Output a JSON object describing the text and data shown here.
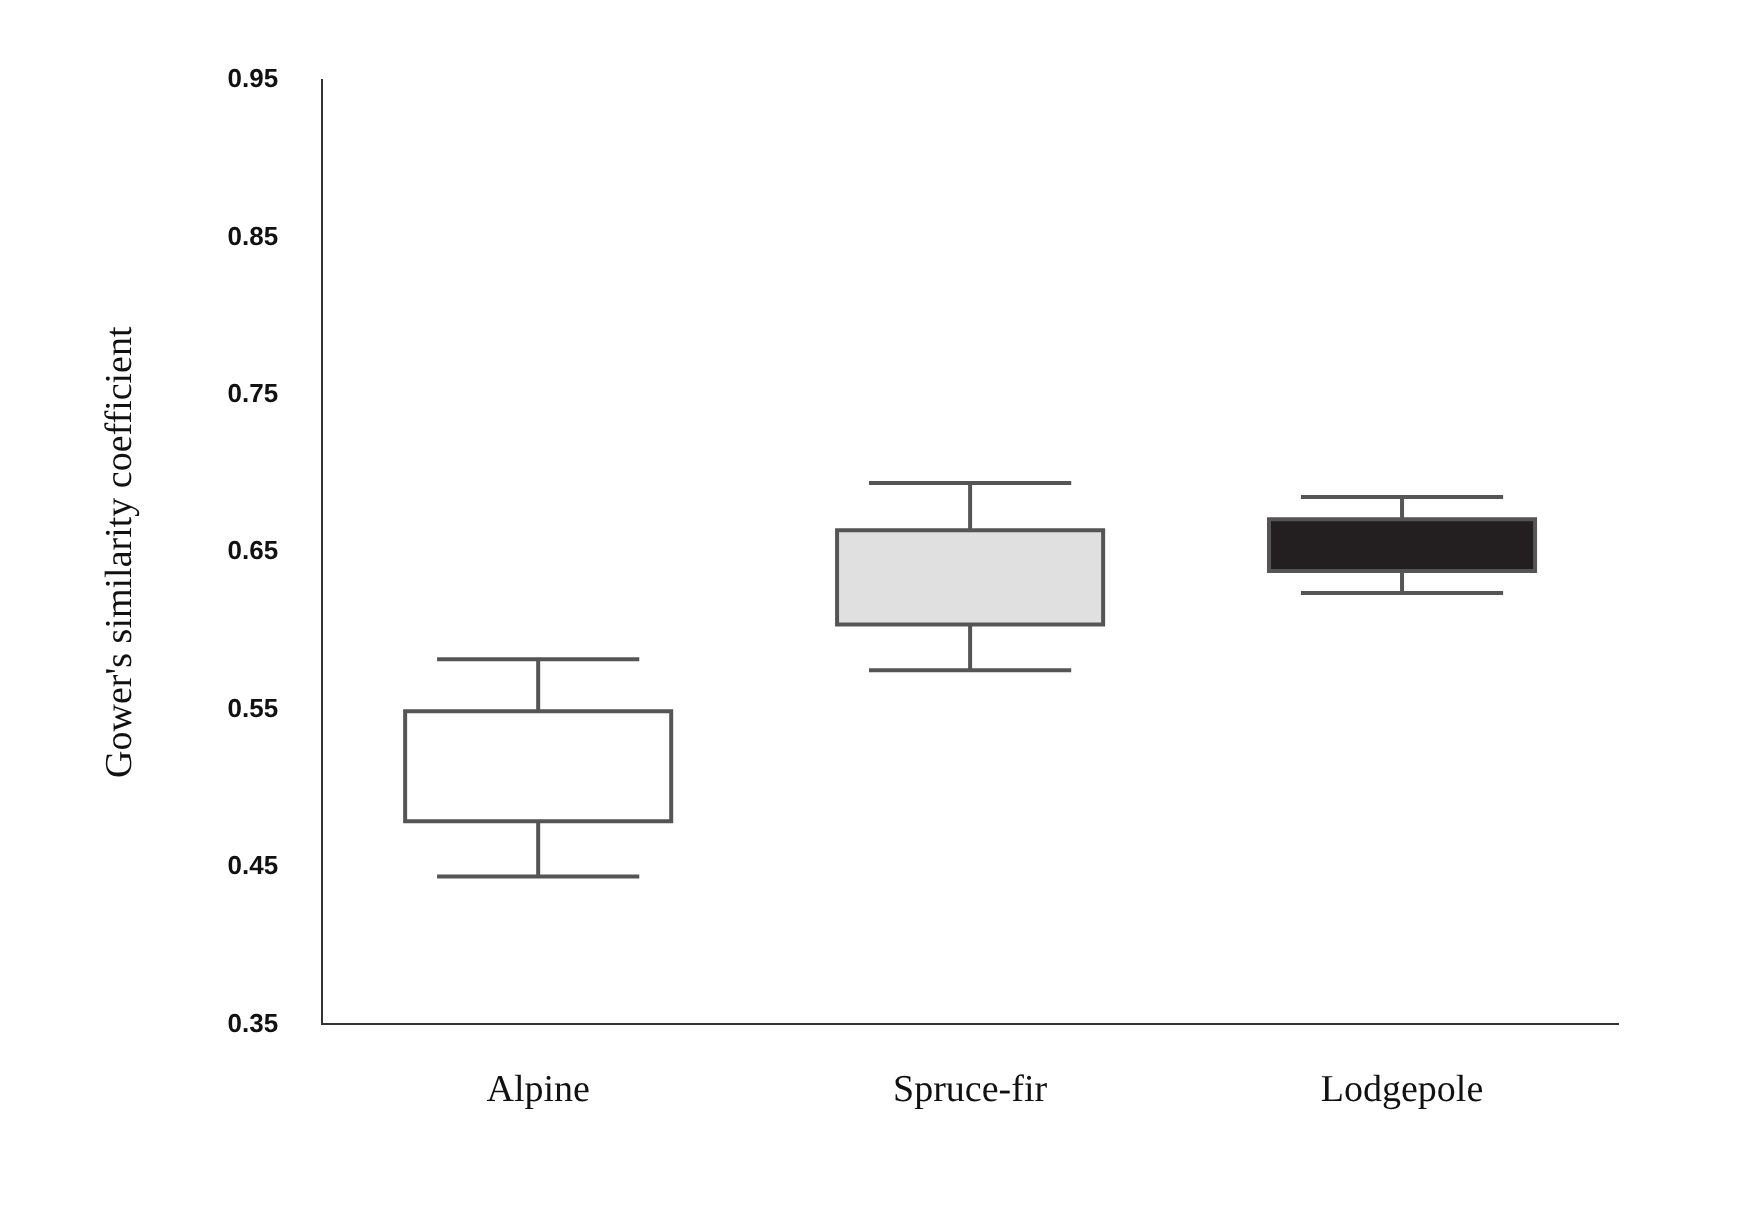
{
  "chart_data": {
    "type": "box",
    "ylabel": "Gower's similarity coefficient",
    "categories": [
      "Alpine",
      "Spruce-fir",
      "Lodgepole"
    ],
    "colors": [
      "#ffffff",
      "#e0e0e0",
      "#231f20"
    ],
    "boxes": [
      {
        "low": 0.444,
        "q1": 0.479,
        "q3": 0.549,
        "high": 0.582
      },
      {
        "low": 0.575,
        "q1": 0.604,
        "q3": 0.664,
        "high": 0.694
      },
      {
        "low": 0.624,
        "q1": 0.638,
        "q3": 0.671,
        "high": 0.685
      }
    ],
    "ylim": [
      0.35,
      0.95
    ],
    "yticks": [
      {
        "value": 0.35,
        "label": "0.35"
      },
      {
        "value": 0.45,
        "label": "0.45"
      },
      {
        "value": 0.55,
        "label": "0.55"
      },
      {
        "value": 0.65,
        "label": "0.65"
      },
      {
        "value": 0.75,
        "label": "0.75"
      },
      {
        "value": 0.85,
        "label": "0.85"
      },
      {
        "value": 0.95,
        "label": "0.95"
      }
    ],
    "grid": false,
    "legend": false
  }
}
